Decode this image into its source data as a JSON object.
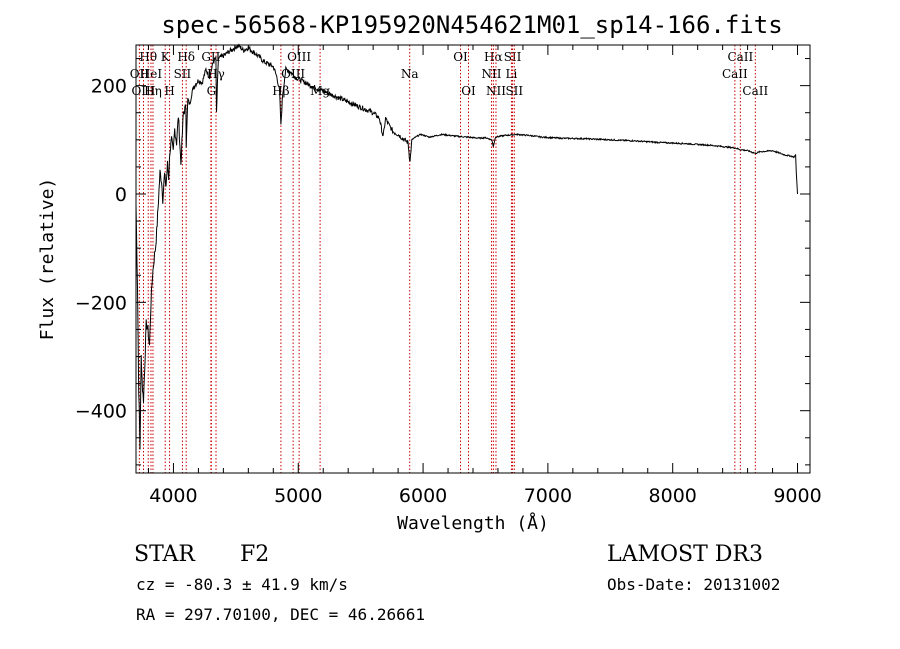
{
  "chart_data": {
    "type": "line",
    "title": "spec-56568-KP195920N454621M01_sp14-166.fits",
    "xlabel": "Wavelength (Å)",
    "ylabel": "Flux (relative)",
    "xlim": [
      3700,
      9100
    ],
    "ylim": [
      -515,
      275
    ],
    "xticks": [
      4000,
      5000,
      6000,
      7000,
      8000,
      9000
    ],
    "yticks": [
      -400,
      -200,
      0,
      200
    ],
    "grid": false,
    "series": [
      {
        "name": "flux",
        "x": [
          3700,
          3712,
          3722,
          3732,
          3742,
          3752,
          3760,
          3770,
          3782,
          3795,
          3808,
          3820,
          3832,
          3845,
          3858,
          3870,
          3880,
          3892,
          3905,
          3915,
          3928,
          3940,
          3952,
          3962,
          3972,
          3985,
          3998,
          4010,
          4025,
          4040,
          4060,
          4080,
          4100,
          4102,
          4115,
          4130,
          4150,
          4170,
          4200,
          4230,
          4260,
          4290,
          4320,
          4340,
          4345,
          4360,
          4400,
          4440,
          4480,
          4520,
          4560,
          4600,
          4640,
          4680,
          4720,
          4760,
          4800,
          4830,
          4850,
          4861,
          4875,
          4900,
          4940,
          4980,
          5020,
          5060,
          5100,
          5150,
          5200,
          5250,
          5300,
          5350,
          5400,
          5450,
          5500,
          5550,
          5600,
          5650,
          5680,
          5700,
          5720,
          5760,
          5800,
          5850,
          5880,
          5890,
          5896,
          5910,
          5940,
          5980,
          6050,
          6150,
          6250,
          6350,
          6450,
          6500,
          6550,
          6563,
          6580,
          6650,
          6750,
          6850,
          6950,
          7100,
          7300,
          7500,
          7700,
          7900,
          8100,
          8300,
          8500,
          8540,
          8600,
          8662,
          8700,
          8800,
          8900,
          8950,
          8970,
          8985,
          8990,
          9000
        ],
        "y": [
          -20,
          -170,
          -360,
          -470,
          -300,
          -360,
          -380,
          -320,
          -240,
          -250,
          -280,
          -200,
          -150,
          -120,
          -95,
          -55,
          -10,
          40,
          25,
          -10,
          35,
          15,
          55,
          30,
          80,
          100,
          75,
          120,
          95,
          145,
          55,
          150,
          160,
          90,
          175,
          165,
          190,
          200,
          210,
          205,
          230,
          215,
          245,
          250,
          150,
          250,
          255,
          262,
          268,
          275,
          265,
          270,
          262,
          255,
          245,
          240,
          235,
          215,
          190,
          125,
          185,
          230,
          225,
          215,
          210,
          205,
          200,
          195,
          190,
          185,
          180,
          175,
          170,
          165,
          160,
          155,
          150,
          140,
          105,
          140,
          130,
          115,
          110,
          100,
          95,
          70,
          60,
          100,
          105,
          110,
          105,
          110,
          107,
          105,
          103,
          104,
          100,
          88,
          105,
          108,
          110,
          108,
          105,
          103,
          102,
          100,
          98,
          95,
          93,
          90,
          85,
          82,
          80,
          75,
          78,
          80,
          72,
          70,
          68,
          72,
          40,
          0
        ]
      }
    ],
    "spectral_lines": [
      {
        "label": "Hθ",
        "x": 3798,
        "row": 1
      },
      {
        "label": "OII",
        "x": 3727,
        "row": 2
      },
      {
        "label": "OIII",
        "x": 3760,
        "row": 3
      },
      {
        "label": "HeI",
        "x": 3820,
        "row": 2
      },
      {
        "label": "Hη",
        "x": 3836,
        "row": 3
      },
      {
        "label": "K",
        "x": 3934,
        "row": 1
      },
      {
        "label": "SII",
        "x": 4072,
        "row": 2
      },
      {
        "label": "H",
        "x": 3969,
        "row": 3
      },
      {
        "label": "Hδ",
        "x": 4102,
        "row": 1
      },
      {
        "label": "GII",
        "x": 4300,
        "row": 1
      },
      {
        "label": "Hγ",
        "x": 4341,
        "row": 2
      },
      {
        "label": "G",
        "x": 4304,
        "row": 3
      },
      {
        "label": "OIII",
        "x": 5007,
        "row": 1
      },
      {
        "label": "OIII",
        "x": 4959,
        "row": 2
      },
      {
        "label": "Hβ",
        "x": 4861,
        "row": 3
      },
      {
        "label": "Mg",
        "x": 5175,
        "row": 3
      },
      {
        "label": "Na",
        "x": 5893,
        "row": 2
      },
      {
        "label": "OI",
        "x": 6300,
        "row": 1
      },
      {
        "label": "OI",
        "x": 6364,
        "row": 3
      },
      {
        "label": "Hα",
        "x": 6563,
        "row": 1
      },
      {
        "label": "SII",
        "x": 6717,
        "row": 1
      },
      {
        "label": "NII",
        "x": 6548,
        "row": 2
      },
      {
        "label": "Li",
        "x": 6708,
        "row": 2
      },
      {
        "label": "NII",
        "x": 6584,
        "row": 3
      },
      {
        "label": "SII",
        "x": 6731,
        "row": 3
      },
      {
        "label": "CaII",
        "x": 8542,
        "row": 1
      },
      {
        "label": "CaII",
        "x": 8498,
        "row": 2
      },
      {
        "label": "CaII",
        "x": 8662,
        "row": 3
      }
    ]
  },
  "info": {
    "class": "STAR",
    "subclass": "F2",
    "survey": "LAMOST DR3",
    "cz": "cz = -80.3 ± 41.9 km/s",
    "obs_date": "Obs-Date: 20131002",
    "coords": "RA = 297.70100, DEC =  46.26661"
  },
  "colors": {
    "line_markers": "#cc0000",
    "spectrum": "#000000"
  }
}
